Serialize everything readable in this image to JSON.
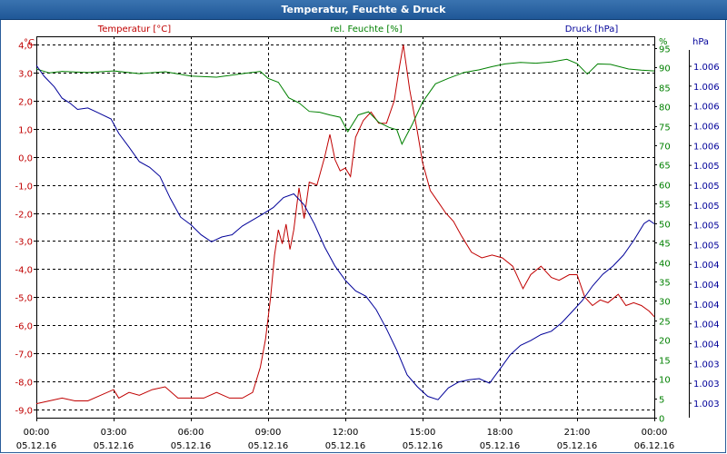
{
  "window": {
    "title": "Temperatur, Feuchte & Druck"
  },
  "colors": {
    "temperature": "#c00000",
    "humidity": "#008000",
    "pressure": "#000099",
    "grid": "#000000"
  },
  "chart_data": {
    "type": "line",
    "title": "Temperatur, Feuchte & Druck",
    "x_ticks": [
      {
        "time": "00:00",
        "date": "05.12.16"
      },
      {
        "time": "03:00",
        "date": "05.12.16"
      },
      {
        "time": "06:00",
        "date": "05.12.16"
      },
      {
        "time": "09:00",
        "date": "05.12.16"
      },
      {
        "time": "12:00",
        "date": "05.12.16"
      },
      {
        "time": "15:00",
        "date": "05.12.16"
      },
      {
        "time": "18:00",
        "date": "05.12.16"
      },
      {
        "time": "21:00",
        "date": "05.12.16"
      },
      {
        "time": "00:00",
        "date": "06.12.16"
      }
    ],
    "xlim_hours": [
      0,
      24
    ],
    "axes": {
      "temperature": {
        "unit": "°C",
        "label": "Temperatur [°C]",
        "ylim": [
          -9.3,
          4.3
        ],
        "ticks": [
          "4,0",
          "3,0",
          "2,0",
          "1,0",
          "0,0",
          "-1,0",
          "-2,0",
          "-3,0",
          "-4,0",
          "-5,0",
          "-6,0",
          "-7,0",
          "-8,0",
          "-9,0"
        ]
      },
      "humidity": {
        "unit": "%",
        "label": "rel. Feuchte [%]",
        "ylim": [
          0,
          98
        ],
        "ticks": [
          "95",
          "90",
          "85",
          "80",
          "75",
          "70",
          "65",
          "60",
          "55",
          "50",
          "45",
          "40",
          "35",
          "30",
          "25",
          "20",
          "15",
          "10",
          "5",
          "0"
        ]
      },
      "pressure": {
        "unit": "hPa",
        "label": "Druck [hPa]",
        "ticks": [
          "1.006",
          "1.006",
          "1.006",
          "1.006",
          "1.006",
          "1.005",
          "1.005",
          "1.005",
          "1.005",
          "1.005",
          "1.004",
          "1.004",
          "1.004",
          "1.004",
          "1.004",
          "1.003",
          "1.003",
          "1.003"
        ]
      }
    },
    "series": [
      {
        "name": "Temperatur [°C]",
        "axis": "temperature",
        "color": "#c00000",
        "points": [
          [
            0,
            -8.8
          ],
          [
            0.5,
            -8.7
          ],
          [
            1,
            -8.6
          ],
          [
            1.5,
            -8.7
          ],
          [
            2,
            -8.7
          ],
          [
            2.5,
            -8.5
          ],
          [
            3,
            -8.3
          ],
          [
            3.2,
            -8.6
          ],
          [
            3.6,
            -8.4
          ],
          [
            4,
            -8.5
          ],
          [
            4.5,
            -8.3
          ],
          [
            5,
            -8.2
          ],
          [
            5.5,
            -8.6
          ],
          [
            6,
            -8.6
          ],
          [
            6.5,
            -8.6
          ],
          [
            7,
            -8.4
          ],
          [
            7.5,
            -8.6
          ],
          [
            8,
            -8.6
          ],
          [
            8.4,
            -8.4
          ],
          [
            8.7,
            -7.5
          ],
          [
            8.9,
            -6.5
          ],
          [
            9.1,
            -5.0
          ],
          [
            9.25,
            -3.5
          ],
          [
            9.4,
            -2.6
          ],
          [
            9.55,
            -3.1
          ],
          [
            9.7,
            -2.4
          ],
          [
            9.85,
            -3.3
          ],
          [
            10.0,
            -2.6
          ],
          [
            10.2,
            -1.1
          ],
          [
            10.4,
            -2.2
          ],
          [
            10.6,
            -0.9
          ],
          [
            10.9,
            -1.0
          ],
          [
            11.2,
            0.0
          ],
          [
            11.4,
            0.8
          ],
          [
            11.6,
            -0.1
          ],
          [
            11.8,
            -0.5
          ],
          [
            12.0,
            -0.4
          ],
          [
            12.2,
            -0.7
          ],
          [
            12.4,
            0.7
          ],
          [
            12.7,
            1.3
          ],
          [
            13.0,
            1.6
          ],
          [
            13.3,
            1.2
          ],
          [
            13.6,
            1.2
          ],
          [
            13.9,
            2.0
          ],
          [
            14.1,
            3.2
          ],
          [
            14.25,
            4.0
          ],
          [
            14.5,
            2.4
          ],
          [
            14.8,
            0.9
          ],
          [
            15.0,
            -0.2
          ],
          [
            15.3,
            -1.2
          ],
          [
            15.6,
            -1.6
          ],
          [
            15.9,
            -2.0
          ],
          [
            16.2,
            -2.3
          ],
          [
            16.5,
            -2.8
          ],
          [
            16.9,
            -3.4
          ],
          [
            17.3,
            -3.6
          ],
          [
            17.7,
            -3.5
          ],
          [
            18.1,
            -3.6
          ],
          [
            18.5,
            -3.9
          ],
          [
            18.9,
            -4.7
          ],
          [
            19.2,
            -4.2
          ],
          [
            19.6,
            -3.9
          ],
          [
            20.0,
            -4.3
          ],
          [
            20.3,
            -4.4
          ],
          [
            20.7,
            -4.2
          ],
          [
            21.0,
            -4.2
          ],
          [
            21.3,
            -5.0
          ],
          [
            21.6,
            -5.3
          ],
          [
            21.9,
            -5.1
          ],
          [
            22.2,
            -5.2
          ],
          [
            22.6,
            -4.9
          ],
          [
            22.9,
            -5.3
          ],
          [
            23.2,
            -5.2
          ],
          [
            23.5,
            -5.3
          ],
          [
            23.8,
            -5.5
          ],
          [
            24,
            -5.7
          ]
        ]
      },
      {
        "name": "rel. Feuchte [%]",
        "axis": "humidity",
        "color": "#008000",
        "points": [
          [
            0,
            89.6
          ],
          [
            0.5,
            88.6
          ],
          [
            1,
            89.0
          ],
          [
            2,
            88.7
          ],
          [
            3,
            89.1
          ],
          [
            4,
            88.4
          ],
          [
            5,
            88.9
          ],
          [
            6,
            87.8
          ],
          [
            7,
            87.5
          ],
          [
            8,
            88.4
          ],
          [
            8.7,
            89.0
          ],
          [
            9.0,
            87.2
          ],
          [
            9.4,
            86.2
          ],
          [
            9.8,
            82.2
          ],
          [
            10.2,
            80.9
          ],
          [
            10.6,
            78.7
          ],
          [
            11.0,
            78.5
          ],
          [
            11.4,
            77.8
          ],
          [
            11.8,
            77.2
          ],
          [
            12.1,
            73.5
          ],
          [
            12.5,
            77.8
          ],
          [
            12.9,
            78.6
          ],
          [
            13.3,
            75.9
          ],
          [
            13.7,
            74.6
          ],
          [
            14.0,
            74.0
          ],
          [
            14.2,
            70.3
          ],
          [
            14.6,
            75.4
          ],
          [
            15.0,
            81.1
          ],
          [
            15.5,
            85.8
          ],
          [
            16.0,
            87.2
          ],
          [
            16.6,
            88.7
          ],
          [
            17.2,
            89.4
          ],
          [
            17.7,
            90.2
          ],
          [
            18.2,
            90.9
          ],
          [
            18.8,
            91.3
          ],
          [
            19.4,
            91.1
          ],
          [
            20.0,
            91.4
          ],
          [
            20.6,
            92.1
          ],
          [
            21.0,
            91.0
          ],
          [
            21.4,
            88.3
          ],
          [
            21.8,
            90.9
          ],
          [
            22.3,
            90.8
          ],
          [
            23.0,
            89.6
          ],
          [
            23.5,
            89.3
          ],
          [
            24,
            89.1
          ]
        ]
      },
      {
        "name": "Druck [hPa]",
        "axis": "pressure",
        "color": "#000099",
        "norm_points": [
          [
            0,
            0.0
          ],
          [
            0.3,
            0.045
          ],
          [
            0.7,
            0.09
          ],
          [
            1.0,
            0.137
          ],
          [
            1.3,
            0.157
          ],
          [
            1.6,
            0.184
          ],
          [
            2.0,
            0.178
          ],
          [
            2.4,
            0.198
          ],
          [
            2.9,
            0.224
          ],
          [
            3.2,
            0.284
          ],
          [
            3.6,
            0.342
          ],
          [
            4.0,
            0.402
          ],
          [
            4.4,
            0.426
          ],
          [
            4.8,
            0.464
          ],
          [
            5.2,
            0.555
          ],
          [
            5.6,
            0.634
          ],
          [
            6.0,
            0.666
          ],
          [
            6.4,
            0.708
          ],
          [
            6.8,
            0.737
          ],
          [
            7.2,
            0.717
          ],
          [
            7.6,
            0.708
          ],
          [
            8.0,
            0.671
          ],
          [
            8.4,
            0.646
          ],
          [
            8.8,
            0.621
          ],
          [
            9.2,
            0.594
          ],
          [
            9.6,
            0.552
          ],
          [
            10.0,
            0.537
          ],
          [
            10.4,
            0.583
          ],
          [
            10.8,
            0.663
          ],
          [
            11.2,
            0.759
          ],
          [
            11.6,
            0.839
          ],
          [
            12.0,
            0.898
          ],
          [
            12.4,
            0.942
          ],
          [
            12.8,
            0.965
          ],
          [
            13.2,
            1.021
          ],
          [
            13.6,
            1.101
          ],
          [
            14.0,
            1.191
          ],
          [
            14.4,
            1.293
          ],
          [
            14.8,
            1.343
          ],
          [
            15.2,
            1.383
          ],
          [
            15.6,
            1.397
          ],
          [
            16.0,
            1.348
          ],
          [
            16.4,
            1.323
          ],
          [
            16.8,
            1.314
          ],
          [
            17.2,
            1.309
          ],
          [
            17.6,
            1.328
          ],
          [
            18.0,
            1.27
          ],
          [
            18.4,
            1.21
          ],
          [
            18.8,
            1.17
          ],
          [
            19.2,
            1.15
          ],
          [
            19.6,
            1.125
          ],
          [
            20.0,
            1.111
          ],
          [
            20.4,
            1.076
          ],
          [
            20.8,
            1.03
          ],
          [
            21.2,
            0.983
          ],
          [
            21.6,
            0.922
          ],
          [
            22.0,
            0.873
          ],
          [
            22.4,
            0.838
          ],
          [
            22.8,
            0.793
          ],
          [
            23.2,
            0.732
          ],
          [
            23.6,
            0.661
          ],
          [
            23.8,
            0.647
          ],
          [
            24,
            0.662
          ]
        ]
      }
    ]
  }
}
